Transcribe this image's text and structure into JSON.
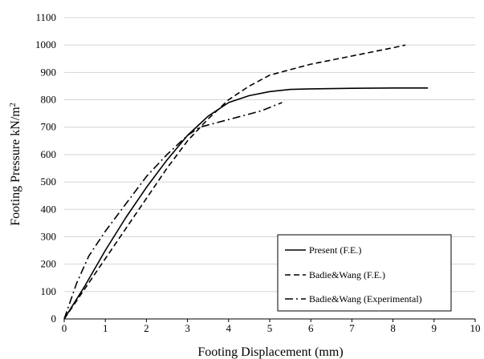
{
  "chart_data": {
    "type": "line",
    "xlabel": "Footing Displacement (mm)",
    "ylabel_main": "Footing Pressure kN/m",
    "ylabel_sup": "2",
    "xlim": [
      0,
      10
    ],
    "ylim": [
      0,
      1100
    ],
    "x_ticks": [
      0,
      1,
      2,
      3,
      4,
      5,
      6,
      7,
      8,
      9,
      10
    ],
    "y_ticks": [
      0,
      100,
      200,
      300,
      400,
      500,
      600,
      700,
      800,
      900,
      1000,
      1100
    ],
    "grid": "horizontal",
    "legend_position": "bottom-right",
    "series": [
      {
        "name": "Present (F.E.)",
        "style": "solid",
        "color": "#000000",
        "x": [
          0,
          0.5,
          1.0,
          1.5,
          2.0,
          2.5,
          3.0,
          3.5,
          4.0,
          4.5,
          5.0,
          5.5,
          6.0,
          7.0,
          8.0,
          8.85
        ],
        "y": [
          0,
          120,
          250,
          370,
          480,
          580,
          670,
          740,
          790,
          815,
          830,
          838,
          840,
          842,
          843,
          843
        ]
      },
      {
        "name": "Badie&Wang (F.E.)",
        "style": "dashed",
        "color": "#000000",
        "x": [
          0,
          0.5,
          1.0,
          1.5,
          2.0,
          2.5,
          3.0,
          3.5,
          4.0,
          4.5,
          5.0,
          5.5,
          6.0,
          7.0,
          8.0,
          8.3
        ],
        "y": [
          0,
          110,
          220,
          330,
          440,
          550,
          650,
          730,
          800,
          850,
          890,
          910,
          930,
          960,
          990,
          1000
        ]
      },
      {
        "name": "Badie&Wang (Experimental)",
        "style": "dashdot",
        "color": "#000000",
        "x": [
          0,
          0.3,
          0.6,
          1.0,
          1.5,
          2.0,
          2.5,
          3.0,
          3.3,
          3.8,
          4.3,
          4.8,
          5.3
        ],
        "y": [
          0,
          130,
          230,
          320,
          420,
          520,
          600,
          670,
          700,
          720,
          740,
          760,
          790
        ]
      }
    ]
  }
}
